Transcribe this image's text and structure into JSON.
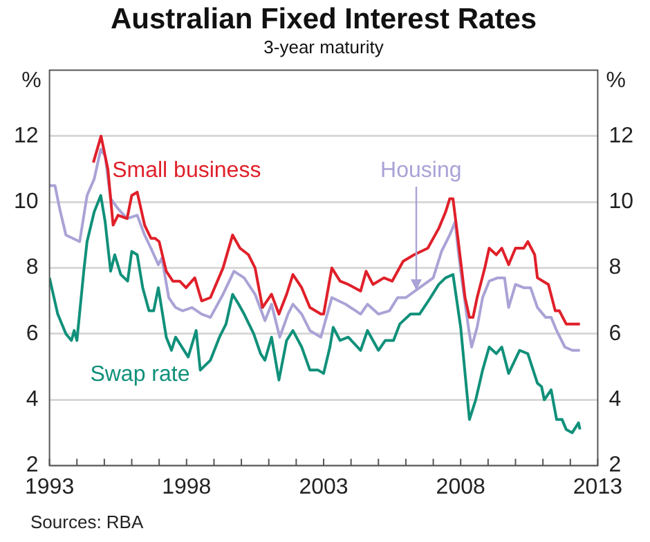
{
  "chart_data": {
    "type": "line",
    "title": "Australian Fixed Interest Rates",
    "subtitle": "3-year maturity",
    "ylabel": "%",
    "y2label": "%",
    "xlim": [
      1993,
      2013
    ],
    "xticks": [
      1993,
      {
        "value": 1994,
        "label": null
      },
      {
        "value": 1995,
        "label": null
      },
      {
        "value": 1996,
        "label": null
      },
      {
        "value": 1997,
        "label": null
      },
      1998,
      {
        "value": 1999,
        "label": null
      },
      {
        "value": 2000,
        "label": null
      },
      {
        "value": 2001,
        "label": null
      },
      {
        "value": 2002,
        "label": null
      },
      2003,
      {
        "value": 2004,
        "label": null
      },
      {
        "value": 2005,
        "label": null
      },
      {
        "value": 2006,
        "label": null
      },
      {
        "value": 2007,
        "label": null
      },
      2008,
      {
        "value": 2009,
        "label": null
      },
      {
        "value": 2010,
        "label": null
      },
      {
        "value": 2011,
        "label": null
      },
      {
        "value": 2012,
        "label": null
      },
      2013
    ],
    "ylim": [
      2,
      14
    ],
    "yticks": [
      2,
      4,
      6,
      8,
      10,
      12
    ],
    "y2lim": [
      2,
      14
    ],
    "y2ticks": [
      2,
      4,
      6,
      8,
      10,
      12
    ],
    "grid": "y",
    "legend": false,
    "marker": "none",
    "line_style": "solid",
    "series": [
      {
        "name": "Small business",
        "color": "#e0202a",
        "x": [
          1994.6,
          1994.88,
          1995.03,
          1995.13,
          1995.32,
          1995.5,
          1995.83,
          1996.0,
          1996.2,
          1996.47,
          1996.7,
          1996.85,
          1997.0,
          1997.26,
          1997.5,
          1997.75,
          1997.98,
          1998.3,
          1998.55,
          1998.87,
          1999.33,
          1999.68,
          1999.95,
          2000.26,
          2000.5,
          2000.77,
          2001.1,
          2001.37,
          2001.65,
          2001.88,
          2002.2,
          2002.5,
          2002.9,
          2003.0,
          2003.3,
          2003.6,
          2003.9,
          2004.35,
          2004.55,
          2004.8,
          2005.2,
          2005.5,
          2005.9,
          2006.3,
          2006.8,
          2007.2,
          2007.45,
          2007.6,
          2007.72,
          2007.9,
          2008.16,
          2008.32,
          2008.45,
          2008.6,
          2008.88,
          2009.04,
          2009.3,
          2009.5,
          2009.75,
          2010.0,
          2010.3,
          2010.45,
          2010.7,
          2010.8,
          2011.2,
          2011.45,
          2011.6,
          2011.85,
          2012.07,
          2012.35
        ],
        "values": [
          11.2,
          12.0,
          11.4,
          11.0,
          9.3,
          9.6,
          9.5,
          10.2,
          10.3,
          9.3,
          8.9,
          8.9,
          8.8,
          7.9,
          7.6,
          7.6,
          7.4,
          7.7,
          7.0,
          7.1,
          8.0,
          9.0,
          8.6,
          8.4,
          8.0,
          6.8,
          7.2,
          6.6,
          7.2,
          7.8,
          7.4,
          6.8,
          6.6,
          6.6,
          8.0,
          7.6,
          7.5,
          7.3,
          7.9,
          7.5,
          7.7,
          7.6,
          8.2,
          8.4,
          8.6,
          9.2,
          9.7,
          10.1,
          10.1,
          8.9,
          7.1,
          6.5,
          6.5,
          7.1,
          8.0,
          8.6,
          8.4,
          8.6,
          8.1,
          8.6,
          8.6,
          8.8,
          8.4,
          7.7,
          7.5,
          6.7,
          6.7,
          6.3,
          6.3,
          6.3
        ]
      },
      {
        "color": "#a9a3d6",
        "x": [
          1993.0,
          1993.2,
          1993.37,
          1993.6,
          1993.85,
          1994.1,
          1994.37,
          1994.63,
          1994.87,
          1995.03,
          1995.23,
          1995.5,
          1995.83,
          1996.2,
          1996.47,
          1996.7,
          1996.97,
          1997.1,
          1997.35,
          1997.6,
          1997.85,
          1998.2,
          1998.55,
          1998.87,
          1999.33,
          1999.73,
          2000.1,
          2000.5,
          2000.86,
          2001.1,
          2001.4,
          2001.7,
          2001.88,
          2002.2,
          2002.5,
          2002.9,
          2003.3,
          2003.8,
          2004.35,
          2004.6,
          2005.0,
          2005.4,
          2005.7,
          2006.0,
          2006.5,
          2007.0,
          2007.3,
          2007.6,
          2007.8,
          2007.9,
          2008.05,
          2008.3,
          2008.4,
          2008.6,
          2008.8,
          2009.04,
          2009.35,
          2009.6,
          2009.75,
          2010.0,
          2010.3,
          2010.55,
          2010.8,
          2011.1,
          2011.3,
          2011.5,
          2011.8,
          2012.07,
          2012.35
        ],
        "values": [
          10.5,
          10.5,
          9.8,
          9.0,
          8.9,
          8.8,
          10.2,
          10.7,
          11.6,
          11.4,
          10.1,
          9.8,
          9.5,
          9.6,
          9.0,
          8.6,
          8.1,
          8.3,
          7.1,
          6.8,
          6.7,
          6.8,
          6.6,
          6.5,
          7.2,
          7.9,
          7.7,
          7.2,
          6.4,
          6.9,
          5.9,
          6.6,
          6.9,
          6.6,
          6.1,
          5.9,
          7.1,
          6.9,
          6.6,
          6.9,
          6.6,
          6.7,
          7.1,
          7.1,
          7.4,
          7.7,
          8.5,
          9.0,
          9.4,
          8.6,
          7.6,
          6.1,
          5.6,
          6.2,
          7.1,
          7.6,
          7.7,
          7.7,
          6.8,
          7.5,
          7.4,
          7.4,
          6.8,
          6.5,
          6.5,
          6.1,
          5.6,
          5.5,
          5.5
        ]
      },
      {
        "name": "Swap rate",
        "color": "#10907a",
        "x": [
          1993.0,
          1993.3,
          1993.6,
          1993.8,
          1993.9,
          1994.0,
          1994.25,
          1994.37,
          1994.63,
          1994.87,
          1995.03,
          1995.23,
          1995.38,
          1995.6,
          1995.85,
          1996.0,
          1996.2,
          1996.4,
          1996.63,
          1996.8,
          1996.97,
          1997.26,
          1997.45,
          1997.6,
          1998.06,
          1998.35,
          1998.5,
          1998.87,
          1999.2,
          1999.44,
          1999.68,
          1999.9,
          2000.1,
          2000.45,
          2000.7,
          2000.86,
          2001.1,
          2001.37,
          2001.65,
          2001.88,
          2002.2,
          2002.5,
          2002.8,
          2003.0,
          2003.23,
          2003.35,
          2003.6,
          2003.9,
          2004.35,
          2004.6,
          2005.0,
          2005.25,
          2005.55,
          2005.78,
          2006.17,
          2006.5,
          2006.9,
          2007.2,
          2007.45,
          2007.72,
          2008.0,
          2008.32,
          2008.55,
          2008.8,
          2009.04,
          2009.3,
          2009.5,
          2009.75,
          2010.15,
          2010.45,
          2010.8,
          2010.95,
          2011.05,
          2011.3,
          2011.5,
          2011.7,
          2011.85,
          2012.07,
          2012.3,
          2012.35
        ],
        "values": [
          7.7,
          6.6,
          6.0,
          5.8,
          6.1,
          5.8,
          7.9,
          8.8,
          9.7,
          10.2,
          9.4,
          7.9,
          8.4,
          7.8,
          7.6,
          8.5,
          8.4,
          7.4,
          6.7,
          6.7,
          7.4,
          5.9,
          5.5,
          5.9,
          5.3,
          6.1,
          4.9,
          5.2,
          5.9,
          6.3,
          7.2,
          6.9,
          6.6,
          6.0,
          5.4,
          5.2,
          5.9,
          4.6,
          5.8,
          6.1,
          5.6,
          4.9,
          4.9,
          4.8,
          5.6,
          6.2,
          5.8,
          5.9,
          5.5,
          6.1,
          5.5,
          5.8,
          5.8,
          6.3,
          6.6,
          6.6,
          7.1,
          7.5,
          7.7,
          7.8,
          6.2,
          3.4,
          4.0,
          4.9,
          5.6,
          5.4,
          5.6,
          4.8,
          5.5,
          5.4,
          4.5,
          4.4,
          4.0,
          4.3,
          3.4,
          3.4,
          3.1,
          3.0,
          3.3,
          3.1
        ]
      }
    ],
    "annotations": [
      {
        "text": "Housing",
        "x": 2006.4,
        "y": 7.3
      },
      "Sources: RBA"
    ]
  }
}
